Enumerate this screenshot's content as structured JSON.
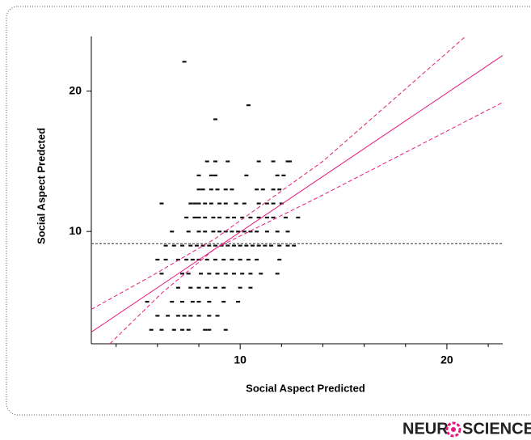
{
  "chart_data": {
    "type": "scatter",
    "xlabel": "Social Aspect  Predicted",
    "ylabel": "Social Aspect  Predcted",
    "xlim": [
      2.8,
      22.7
    ],
    "ylim": [
      2,
      23.9
    ],
    "xticks": [
      10,
      20
    ],
    "yticks": [
      10,
      20
    ],
    "xminor": [
      4,
      6,
      8,
      12,
      14,
      16,
      18,
      22
    ],
    "color": "#111111",
    "x": [
      8.4,
      8.8,
      9.4,
      10.9,
      11.6,
      12.3,
      12.4,
      8.0,
      8.6,
      8.8,
      10.3,
      11.8,
      12.1,
      8.0,
      8.2,
      8.6,
      8.9,
      9.3,
      9.6,
      10.8,
      11.1,
      11.6,
      11.9,
      6.2,
      7.6,
      7.8,
      8.0,
      8.3,
      8.6,
      9.0,
      9.3,
      9.8,
      10.2,
      10.9,
      11.3,
      11.6,
      12.0,
      7.4,
      7.8,
      8.0,
      8.3,
      8.7,
      9.0,
      9.4,
      9.7,
      10.1,
      10.5,
      10.9,
      11.3,
      11.6,
      12.2,
      12.8,
      6.7,
      7.5,
      8.0,
      8.3,
      8.7,
      9.0,
      9.3,
      9.6,
      9.9,
      10.2,
      10.5,
      10.8,
      11.3,
      11.8,
      12.3,
      6.4,
      6.8,
      7.2,
      7.6,
      7.9,
      8.2,
      8.5,
      8.8,
      9.1,
      9.4,
      9.7,
      10.0,
      10.3,
      10.6,
      10.9,
      11.2,
      11.5,
      11.9,
      12.3,
      12.6,
      6.0,
      6.4,
      7.0,
      7.4,
      7.7,
      8.0,
      8.4,
      8.8,
      9.2,
      9.6,
      10.0,
      10.4,
      10.8,
      11.9,
      6.2,
      7.2,
      7.5,
      8.1,
      8.5,
      8.9,
      9.3,
      9.7,
      10.1,
      10.5,
      11.0,
      11.8,
      7.0,
      7.6,
      8.0,
      8.4,
      8.8,
      9.2,
      10.0,
      10.5,
      5.5,
      6.7,
      7.2,
      7.7,
      8.0,
      8.5,
      9.2,
      9.9,
      6.0,
      6.5,
      7.0,
      7.3,
      7.6,
      8.0,
      8.5,
      8.9,
      5.7,
      6.2,
      6.8,
      7.2,
      7.5,
      8.3,
      8.5,
      9.3,
      7.3,
      10.4,
      8.8
    ],
    "y": [
      15,
      15,
      15,
      15,
      15,
      15,
      15,
      14,
      14,
      14,
      14,
      14,
      14,
      13,
      13,
      13,
      13,
      13,
      13,
      13,
      13,
      13,
      13,
      12,
      12,
      12,
      12,
      12,
      12,
      12,
      12,
      12,
      12,
      12,
      12,
      12,
      12,
      11,
      11,
      11,
      11,
      11,
      11,
      11,
      11,
      11,
      11,
      11,
      11,
      11,
      11,
      11,
      10,
      10,
      10,
      10,
      10,
      10,
      10,
      10,
      10,
      10,
      10,
      10,
      10,
      10,
      10,
      9,
      9,
      9,
      9,
      9,
      9,
      9,
      9,
      9,
      9,
      9,
      9,
      9,
      9,
      9,
      9,
      9,
      9,
      9,
      9,
      8,
      8,
      8,
      8,
      8,
      8,
      8,
      8,
      8,
      8,
      8,
      8,
      8,
      8,
      7,
      7,
      7,
      7,
      7,
      7,
      7,
      7,
      7,
      7,
      7,
      7,
      6,
      6,
      6,
      6,
      6,
      6,
      6,
      6,
      5,
      5,
      5,
      5,
      5,
      5,
      5,
      5,
      4,
      4,
      4,
      4,
      4,
      4,
      4,
      4,
      3,
      3,
      3,
      3,
      3,
      3,
      3,
      3,
      22.1,
      19.0,
      18.0
    ],
    "lines": [
      {
        "style": "solid",
        "color": "#e6197f",
        "x": [
          2.8,
          22.7
        ],
        "y": [
          2.83,
          22.54
        ]
      },
      {
        "style": "dashed",
        "color": "#e6197f",
        "x": [
          2.8,
          5.8,
          8.8,
          14.0,
          20.9
        ],
        "y": [
          4.45,
          6.9,
          9.5,
          15.0,
          23.9
        ]
      },
      {
        "style": "dashed",
        "color": "#e6197f",
        "x": [
          3.7,
          6.2,
          8.8,
          14.0,
          22.7
        ],
        "y": [
          2.0,
          5.6,
          8.8,
          12.6,
          19.2
        ]
      }
    ],
    "hline": {
      "value": 9.13,
      "color": "#333333"
    },
    "brand": {
      "left": "NEUR",
      "right": "SCIENCE"
    }
  }
}
